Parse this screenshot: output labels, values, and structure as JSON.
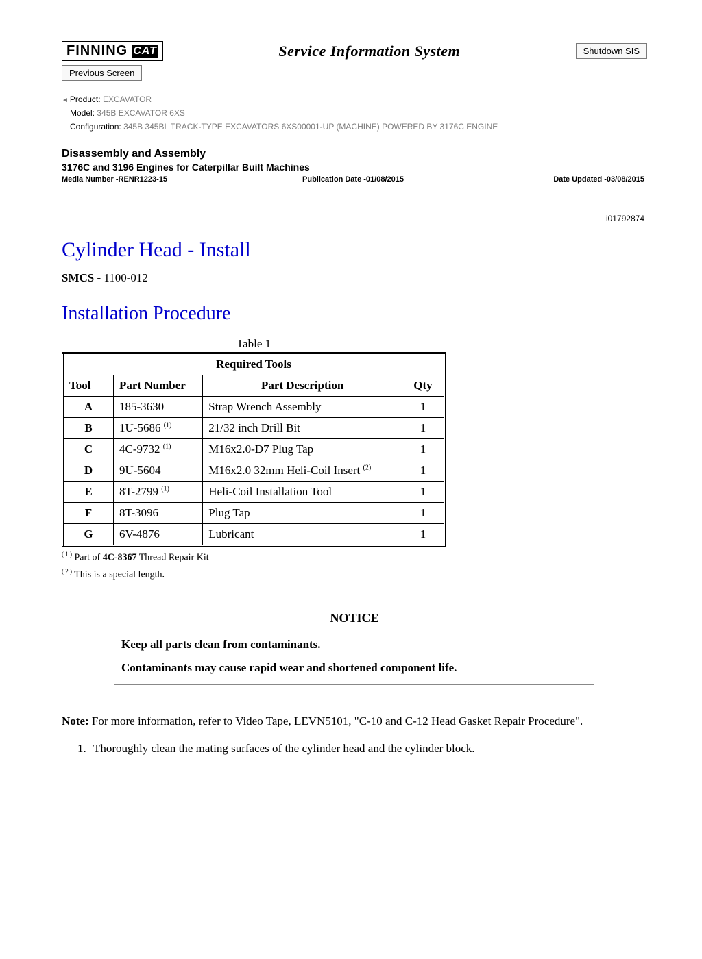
{
  "header": {
    "logo_text": "FINNING",
    "logo_cat": "CAT",
    "sis_title": "Service Information System",
    "shutdown_label": "Shutdown SIS",
    "previous_label": "Previous Screen"
  },
  "meta": {
    "product_label": "Product:",
    "product_value": "EXCAVATOR",
    "model_label": "Model:",
    "model_value": "345B EXCAVATOR 6XS",
    "config_label": "Configuration:",
    "config_value": "345B 345BL TRACK-TYPE EXCAVATORS 6XS00001-UP (MACHINE) POWERED BY 3176C ENGINE"
  },
  "doc": {
    "section": "Disassembly and Assembly",
    "subtitle": "3176C and 3196 Engines for Caterpillar Built Machines",
    "media_number": "Media Number -RENR1223-15",
    "pub_date": "Publication Date -01/08/2015",
    "date_updated": "Date Updated -03/08/2015",
    "doc_id": "i01792874"
  },
  "procedure": {
    "title": "Cylinder Head - Install",
    "smcs_label": "SMCS - ",
    "smcs_code": "1100-012",
    "install_heading": "Installation Procedure"
  },
  "table": {
    "caption": "Table 1",
    "title": "Required Tools",
    "columns": [
      "Tool",
      "Part Number",
      "Part Description",
      "Qty"
    ],
    "rows": [
      {
        "tool": "A",
        "pn": "185-3630",
        "pn_sup": "",
        "desc": "Strap Wrench Assembly",
        "desc_sup": "",
        "qty": "1"
      },
      {
        "tool": "B",
        "pn": "1U-5686",
        "pn_sup": "(1)",
        "desc": "21/32 inch Drill Bit",
        "desc_sup": "",
        "qty": "1"
      },
      {
        "tool": "C",
        "pn": "4C-9732",
        "pn_sup": "(1)",
        "desc": "M16x2.0-D7 Plug Tap",
        "desc_sup": "",
        "qty": "1"
      },
      {
        "tool": "D",
        "pn": "9U-5604",
        "pn_sup": "",
        "desc": "M16x2.0 32mm Heli-Coil Insert",
        "desc_sup": "(2)",
        "qty": "1"
      },
      {
        "tool": "E",
        "pn": "8T-2799",
        "pn_sup": "(1)",
        "desc": "Heli-Coil Installation Tool",
        "desc_sup": "",
        "qty": "1"
      },
      {
        "tool": "F",
        "pn": "8T-3096",
        "pn_sup": "",
        "desc": "Plug Tap",
        "desc_sup": "",
        "qty": "1"
      },
      {
        "tool": "G",
        "pn": "6V-4876",
        "pn_sup": "",
        "desc": "Lubricant",
        "desc_sup": "",
        "qty": "1"
      }
    ],
    "footnote1_sup": "( 1 )",
    "footnote1_a": "Part of ",
    "footnote1_b": "4C-8367",
    "footnote1_c": " Thread Repair Kit",
    "footnote2_sup": "( 2 )",
    "footnote2": "This is a special length."
  },
  "notice": {
    "label": "NOTICE",
    "line1": "Keep all parts clean from contaminants.",
    "line2": "Contaminants may cause rapid wear and shortened component life."
  },
  "body": {
    "note_label": "Note: ",
    "note_text": "For more information, refer to Video Tape, LEVN5101, \"C-10 and C-12 Head Gasket Repair Procedure\".",
    "step1": "Thoroughly clean the mating surfaces of the cylinder head and the cylinder block."
  }
}
